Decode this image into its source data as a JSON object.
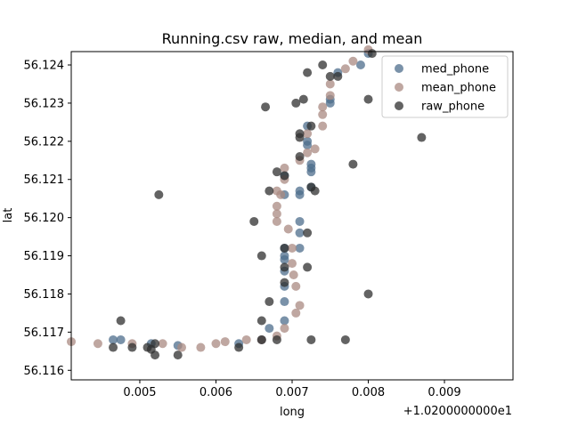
{
  "chart_data": {
    "type": "scatter",
    "title": "Running.csv raw, median, and mean",
    "xlabel": "long",
    "ylabel": "lat",
    "x_offset_label": "+1.0200000000e1",
    "xlim": [
      0.0041,
      0.0099
    ],
    "ylim": [
      56.11575,
      56.12435
    ],
    "x_ticks": [
      0.005,
      0.006,
      0.007,
      0.008,
      0.009
    ],
    "x_tick_labels": [
      "0.005",
      "0.006",
      "0.007",
      "0.008",
      "0.009"
    ],
    "y_ticks": [
      56.116,
      56.117,
      56.118,
      56.119,
      56.12,
      56.121,
      56.122,
      56.123,
      56.124
    ],
    "y_tick_labels": [
      "56.116",
      "56.117",
      "56.118",
      "56.119",
      "56.120",
      "56.121",
      "56.122",
      "56.123",
      "56.124"
    ],
    "grid": false,
    "legend_position": "top-right",
    "series": [
      {
        "name": "med_phone",
        "color": "#4e6d8c",
        "points": [
          [
            0.00465,
            56.1168
          ],
          [
            0.00475,
            56.1168
          ],
          [
            0.00515,
            56.1167
          ],
          [
            0.0055,
            56.11665
          ],
          [
            0.0063,
            56.1167
          ],
          [
            0.0066,
            56.1168
          ],
          [
            0.0067,
            56.1171
          ],
          [
            0.0069,
            56.1173
          ],
          [
            0.0069,
            56.1178
          ],
          [
            0.0069,
            56.1182
          ],
          [
            0.0069,
            56.1186
          ],
          [
            0.0069,
            56.1189
          ],
          [
            0.0069,
            56.119
          ],
          [
            0.0069,
            56.1192
          ],
          [
            0.0071,
            56.1192
          ],
          [
            0.0071,
            56.1196
          ],
          [
            0.0071,
            56.1199
          ],
          [
            0.0069,
            56.1206
          ],
          [
            0.0071,
            56.1206
          ],
          [
            0.0071,
            56.1207
          ],
          [
            0.0069,
            56.1211
          ],
          [
            0.00725,
            56.1208
          ],
          [
            0.00725,
            56.1212
          ],
          [
            0.00725,
            56.1213
          ],
          [
            0.00725,
            56.1214
          ],
          [
            0.0072,
            56.1219
          ],
          [
            0.0072,
            56.122
          ],
          [
            0.0072,
            56.1224
          ],
          [
            0.0075,
            56.123
          ],
          [
            0.0075,
            56.1231
          ],
          [
            0.0076,
            56.1238
          ],
          [
            0.0079,
            56.124
          ],
          [
            0.008,
            56.1243
          ]
        ]
      },
      {
        "name": "mean_phone",
        "color": "#a98a82",
        "points": [
          [
            0.0041,
            56.11675
          ],
          [
            0.00445,
            56.1167
          ],
          [
            0.0049,
            56.1167
          ],
          [
            0.0053,
            56.1167
          ],
          [
            0.00555,
            56.1166
          ],
          [
            0.0058,
            56.1166
          ],
          [
            0.006,
            56.1167
          ],
          [
            0.00612,
            56.11675
          ],
          [
            0.0064,
            56.1168
          ],
          [
            0.0066,
            56.1168
          ],
          [
            0.0068,
            56.1169
          ],
          [
            0.0069,
            56.1171
          ],
          [
            0.00705,
            56.1175
          ],
          [
            0.0071,
            56.1177
          ],
          [
            0.00705,
            56.1182
          ],
          [
            0.00702,
            56.1185
          ],
          [
            0.007,
            56.1188
          ],
          [
            0.007,
            56.1192
          ],
          [
            0.00695,
            56.1197
          ],
          [
            0.0068,
            56.1199
          ],
          [
            0.0068,
            56.1201
          ],
          [
            0.0068,
            56.1203
          ],
          [
            0.00685,
            56.1206
          ],
          [
            0.0068,
            56.1207
          ],
          [
            0.0069,
            56.121
          ],
          [
            0.0069,
            56.1213
          ],
          [
            0.0071,
            56.1215
          ],
          [
            0.0072,
            56.1217
          ],
          [
            0.0073,
            56.1218
          ],
          [
            0.0072,
            56.1222
          ],
          [
            0.0074,
            56.1224
          ],
          [
            0.0074,
            56.1227
          ],
          [
            0.0074,
            56.1229
          ],
          [
            0.0075,
            56.1232
          ],
          [
            0.0075,
            56.1235
          ],
          [
            0.0077,
            56.1239
          ],
          [
            0.0078,
            56.1241
          ],
          [
            0.008,
            56.1244
          ]
        ]
      },
      {
        "name": "raw_phone",
        "color": "#2f2f2f",
        "points": [
          [
            0.00465,
            56.1166
          ],
          [
            0.00475,
            56.1173
          ],
          [
            0.0049,
            56.1166
          ],
          [
            0.0051,
            56.1166
          ],
          [
            0.00515,
            56.11655
          ],
          [
            0.0052,
            56.1164
          ],
          [
            0.0052,
            56.1167
          ],
          [
            0.00525,
            56.1206
          ],
          [
            0.0055,
            56.1164
          ],
          [
            0.0063,
            56.1166
          ],
          [
            0.0065,
            56.1199
          ],
          [
            0.0066,
            56.119
          ],
          [
            0.0066,
            56.1173
          ],
          [
            0.0066,
            56.1168
          ],
          [
            0.00665,
            56.1229
          ],
          [
            0.0067,
            56.1207
          ],
          [
            0.0067,
            56.1178
          ],
          [
            0.0068,
            56.1168
          ],
          [
            0.0068,
            56.1212
          ],
          [
            0.0069,
            56.1211
          ],
          [
            0.0069,
            56.1192
          ],
          [
            0.0069,
            56.1187
          ],
          [
            0.0069,
            56.1183
          ],
          [
            0.00705,
            56.123
          ],
          [
            0.0071,
            56.1222
          ],
          [
            0.0071,
            56.1221
          ],
          [
            0.0071,
            56.1216
          ],
          [
            0.0072,
            56.1196
          ],
          [
            0.0072,
            56.1187
          ],
          [
            0.00715,
            56.1231
          ],
          [
            0.00725,
            56.1208
          ],
          [
            0.0073,
            56.1207
          ],
          [
            0.00725,
            56.1224
          ],
          [
            0.0072,
            56.1238
          ],
          [
            0.00725,
            56.1168
          ],
          [
            0.0074,
            56.124
          ],
          [
            0.0075,
            56.1237
          ],
          [
            0.0076,
            56.1237
          ],
          [
            0.0077,
            56.1168
          ],
          [
            0.0078,
            56.1214
          ],
          [
            0.008,
            56.1231
          ],
          [
            0.00805,
            56.1243
          ],
          [
            0.008,
            56.118
          ],
          [
            0.0087,
            56.1221
          ]
        ]
      }
    ]
  }
}
